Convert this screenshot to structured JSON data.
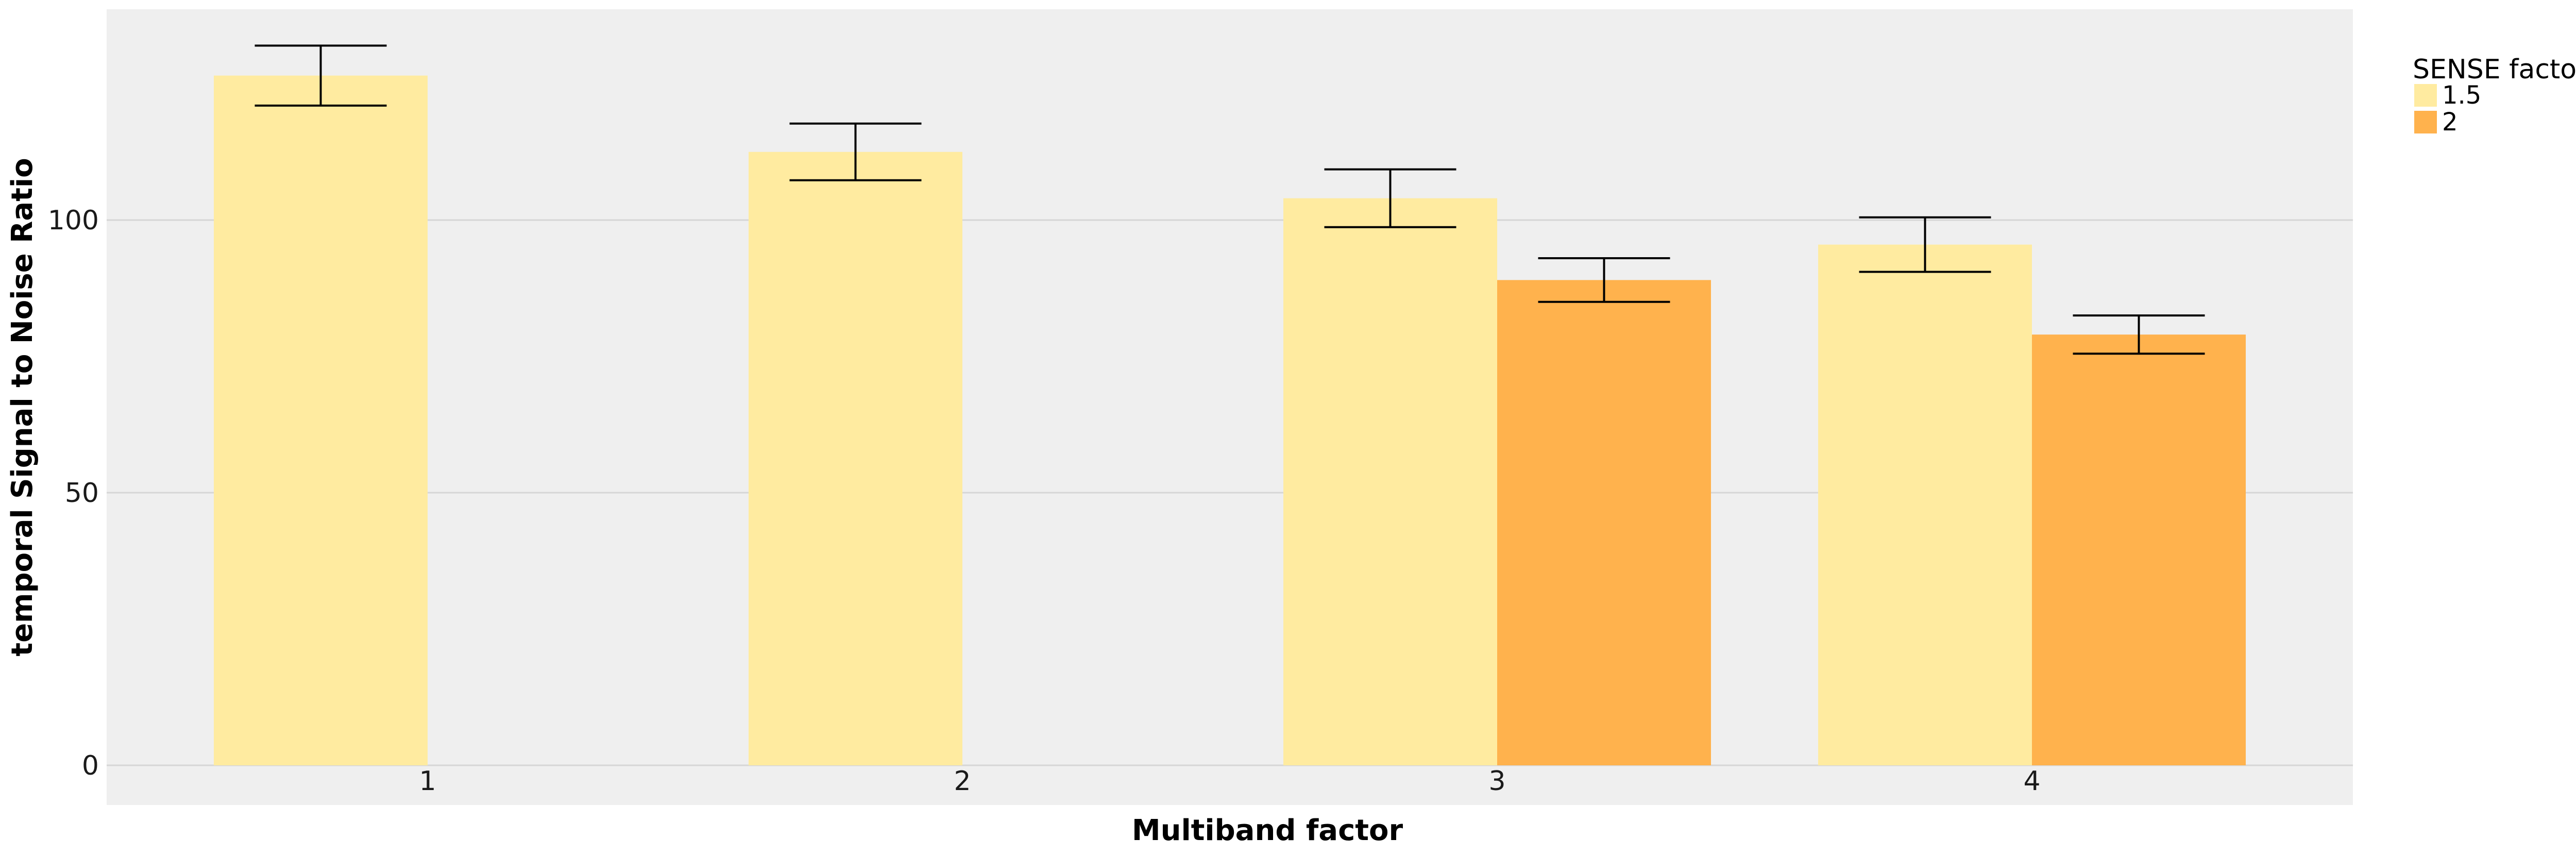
{
  "chart_data": {
    "type": "bar",
    "title": "",
    "xlabel": "Multiband factor",
    "ylabel": "temporal Signal to Noise Ratio",
    "categories": [
      "1",
      "2",
      "3",
      "4"
    ],
    "ylim": [
      0,
      139
    ],
    "yticks": [
      0,
      50,
      100
    ],
    "grid": true,
    "legend": {
      "title": "SENSE factor",
      "placement": "right-top"
    },
    "series": [
      {
        "name": "1.5",
        "color": "#ffeba0",
        "values": [
          126.5,
          112.5,
          104,
          95.5
        ],
        "error": [
          5.5,
          5.2,
          5.3,
          5.0
        ]
      },
      {
        "name": "2",
        "color": "#ffb24d",
        "values": [
          null,
          null,
          89,
          79
        ],
        "error": [
          null,
          null,
          4.0,
          3.5
        ]
      }
    ],
    "background_color": "#efefef",
    "grid_color": "#d6d6d6"
  }
}
